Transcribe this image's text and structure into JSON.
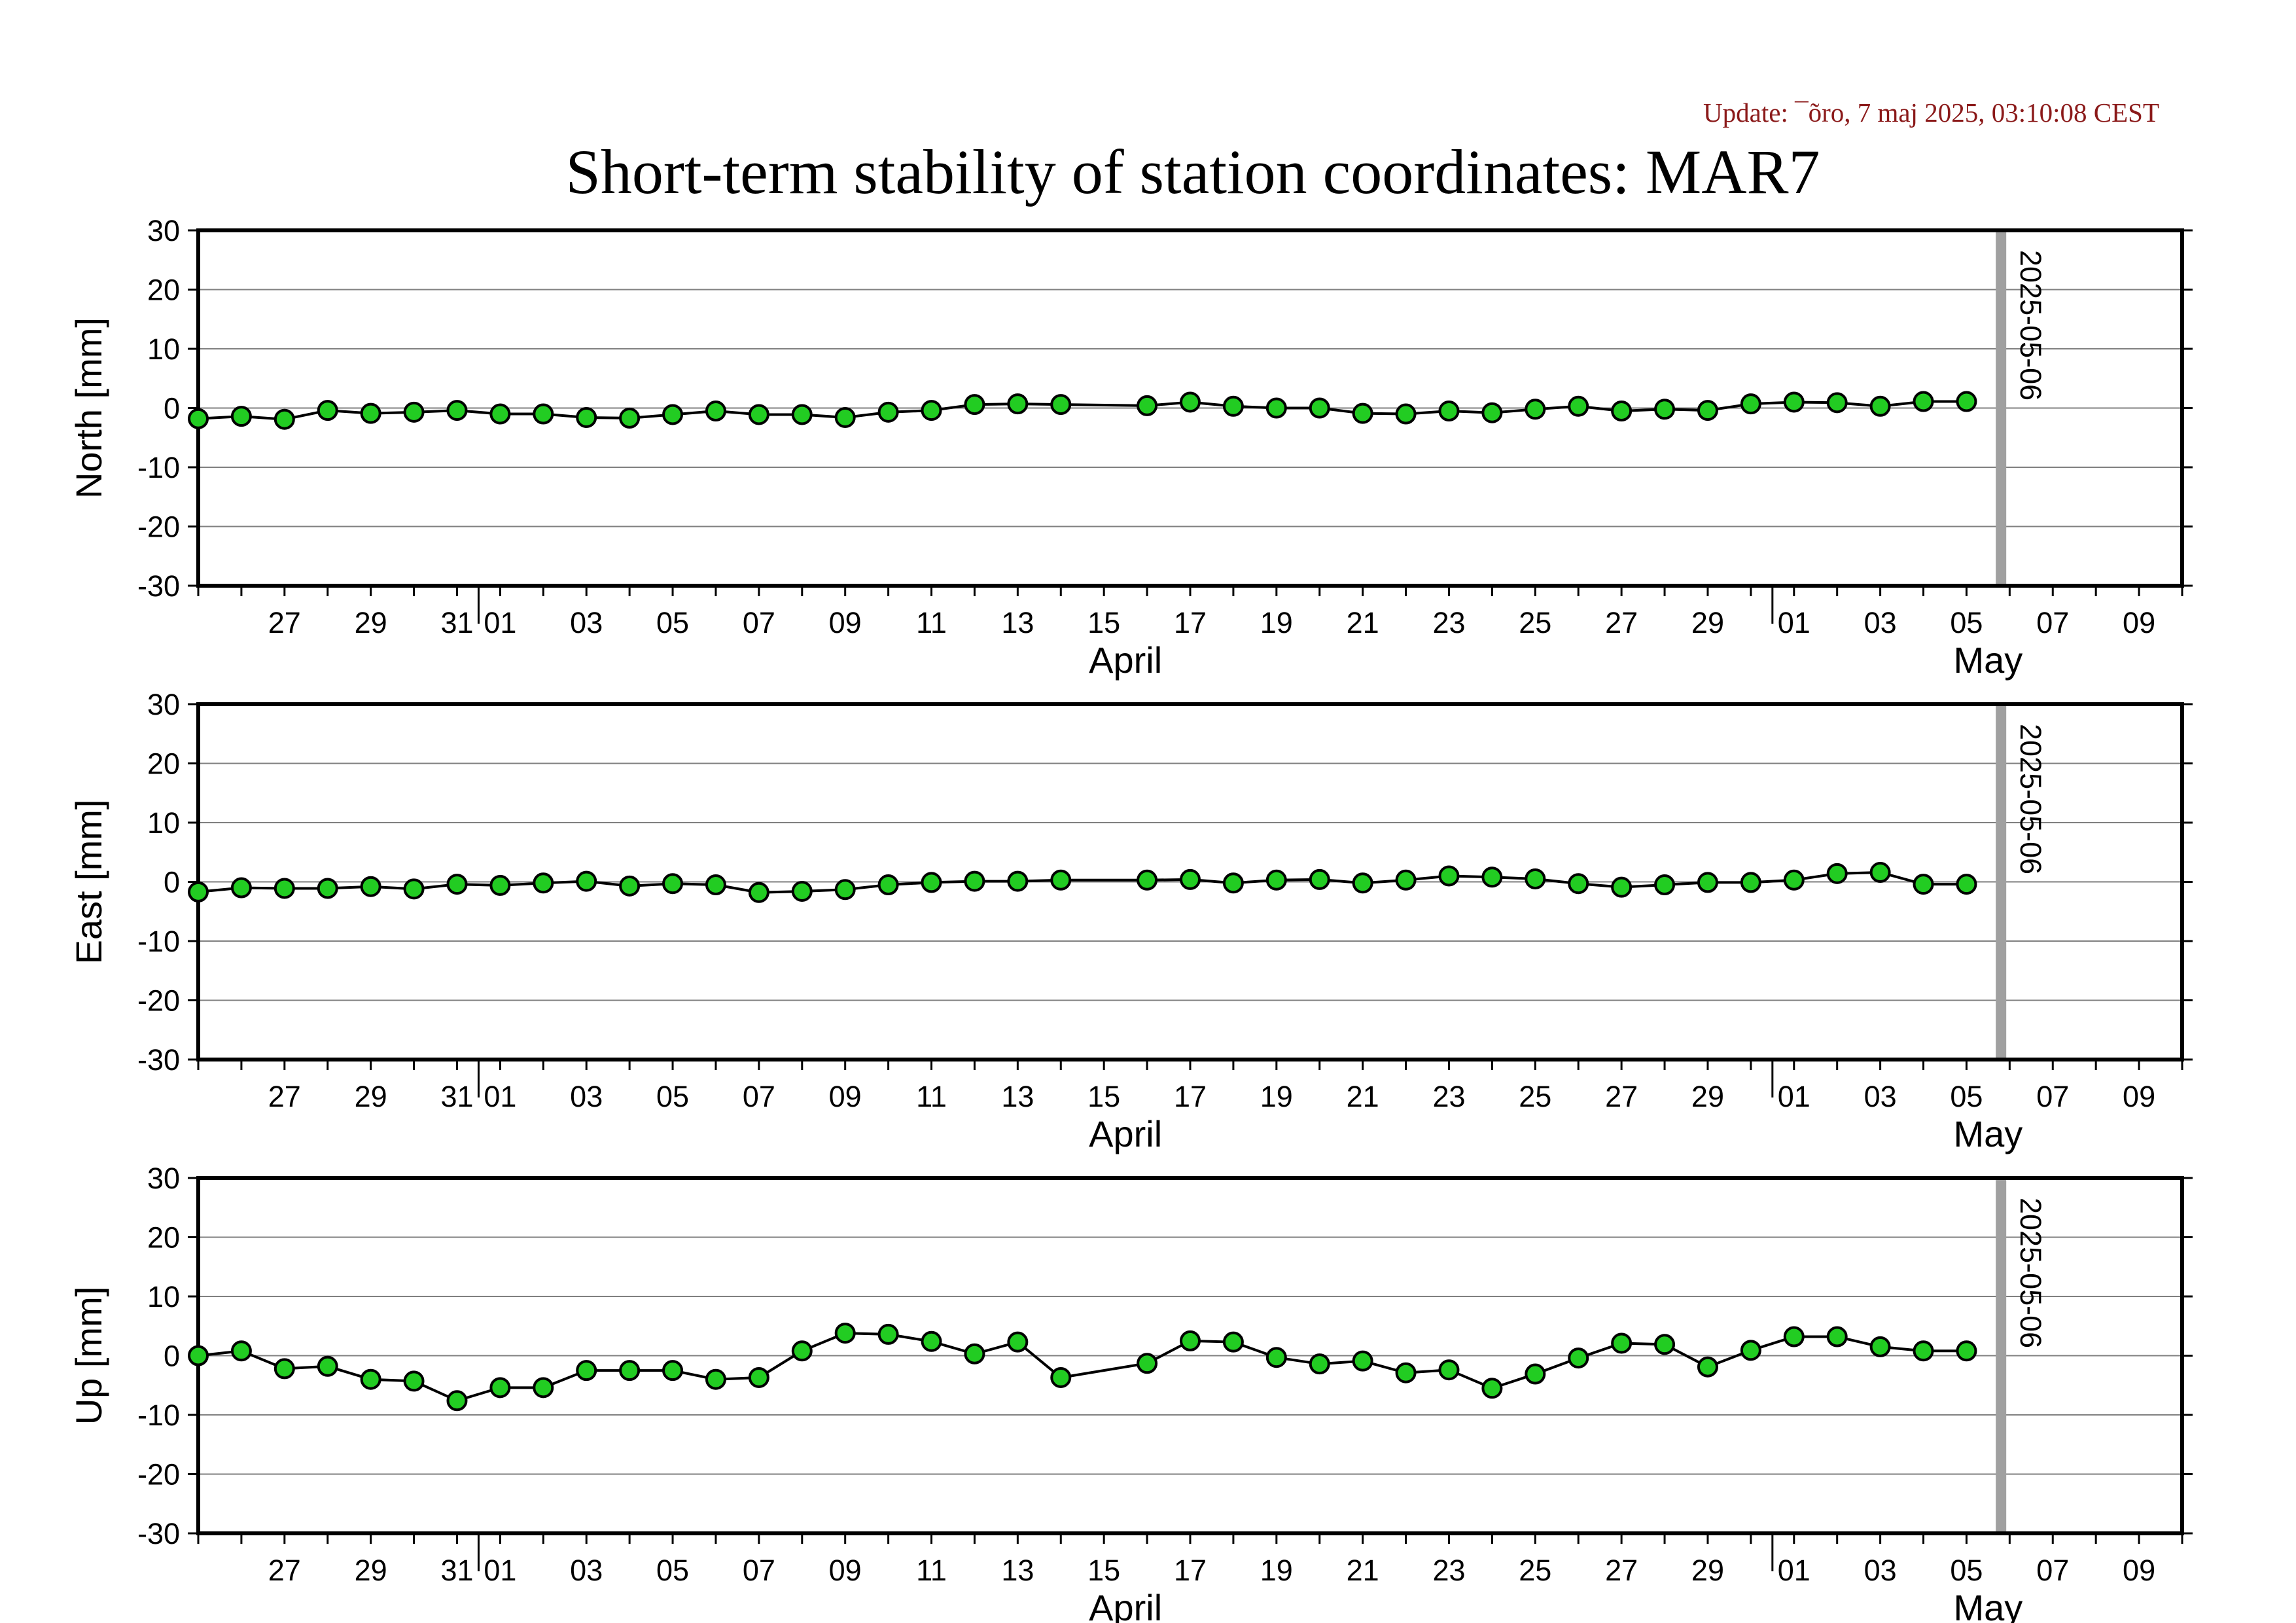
{
  "update_text": "Update: ¯õro, 7 maj 2025, 03:10:08 CEST",
  "title": "Short-term stability of station coordinates: MAR7",
  "colors": {
    "point_fill": "#22cc22",
    "point_stroke": "#000000",
    "line": "#000000",
    "grid": "#808080",
    "marker": "#a0a0a0",
    "update": "#8b1a1a"
  },
  "chart_data": {
    "type": "line",
    "x_start_date": "2025-03-25",
    "x_end_date": "2025-05-10",
    "x_range_days": [
      0,
      46
    ],
    "ylim": [
      -30,
      30
    ],
    "yticks": [
      30,
      20,
      10,
      0,
      -10,
      -20,
      -30
    ],
    "grid": true,
    "x_tick_labels": [
      {
        "day": 2,
        "label": "27"
      },
      {
        "day": 4,
        "label": "29"
      },
      {
        "day": 6,
        "label": "31"
      },
      {
        "day": 7,
        "label": "01"
      },
      {
        "day": 9,
        "label": "03"
      },
      {
        "day": 11,
        "label": "05"
      },
      {
        "day": 13,
        "label": "07"
      },
      {
        "day": 15,
        "label": "09"
      },
      {
        "day": 17,
        "label": "11"
      },
      {
        "day": 19,
        "label": "13"
      },
      {
        "day": 21,
        "label": "15"
      },
      {
        "day": 23,
        "label": "17"
      },
      {
        "day": 25,
        "label": "19"
      },
      {
        "day": 27,
        "label": "21"
      },
      {
        "day": 29,
        "label": "23"
      },
      {
        "day": 31,
        "label": "25"
      },
      {
        "day": 33,
        "label": "27"
      },
      {
        "day": 35,
        "label": "29"
      },
      {
        "day": 37,
        "label": "01"
      },
      {
        "day": 39,
        "label": "03"
      },
      {
        "day": 41,
        "label": "05"
      },
      {
        "day": 43,
        "label": "07"
      },
      {
        "day": 45,
        "label": "09"
      }
    ],
    "month_labels": [
      {
        "day": 21.5,
        "label": "April"
      },
      {
        "day": 41.5,
        "label": "May"
      }
    ],
    "month_boundaries": [
      6.5,
      36.5
    ],
    "marker": {
      "day": 41.8,
      "label": "2025-05-06"
    },
    "series_x": [
      0,
      1,
      2,
      3,
      4,
      5,
      6,
      7,
      8,
      9,
      10,
      11,
      12,
      13,
      14,
      15,
      16,
      17,
      18,
      19,
      20,
      22,
      23,
      24,
      25,
      26,
      27,
      28,
      29,
      30,
      31,
      32,
      33,
      34,
      35,
      36,
      37,
      38,
      39,
      40,
      41
    ],
    "panels": [
      {
        "ylabel": "North [mm]",
        "values": [
          -1.8,
          -1.4,
          -1.9,
          -0.4,
          -0.9,
          -0.7,
          -0.4,
          -1.0,
          -1.0,
          -1.6,
          -1.7,
          -1.1,
          -0.5,
          -1.1,
          -1.1,
          -1.6,
          -0.7,
          -0.4,
          0.6,
          0.7,
          0.6,
          0.4,
          1.0,
          0.3,
          0.0,
          0.0,
          -0.9,
          -1.0,
          -0.5,
          -0.8,
          -0.2,
          0.3,
          -0.5,
          -0.2,
          -0.4,
          0.7,
          1.0,
          0.9,
          0.3,
          1.1,
          1.1
        ]
      },
      {
        "ylabel": "East [mm]",
        "values": [
          -1.7,
          -1.0,
          -1.1,
          -1.1,
          -0.8,
          -1.2,
          -0.4,
          -0.6,
          -0.2,
          0.1,
          -0.7,
          -0.3,
          -0.5,
          -1.8,
          -1.6,
          -1.3,
          -0.5,
          -0.1,
          0.1,
          0.1,
          0.3,
          0.3,
          0.4,
          -0.2,
          0.3,
          0.4,
          -0.2,
          0.3,
          1.0,
          0.8,
          0.5,
          -0.3,
          -0.9,
          -0.5,
          -0.1,
          -0.1,
          0.3,
          1.4,
          1.6,
          -0.4,
          -0.4
        ]
      },
      {
        "ylabel": "Up [mm]",
        "values": [
          0.0,
          0.8,
          -2.2,
          -1.8,
          -4.0,
          -4.3,
          -7.6,
          -5.4,
          -5.4,
          -2.5,
          -2.5,
          -2.5,
          -4.0,
          -3.7,
          0.8,
          3.8,
          3.6,
          2.4,
          0.3,
          2.3,
          -3.7,
          -1.3,
          2.5,
          2.3,
          -0.3,
          -1.4,
          -0.9,
          -2.9,
          -2.4,
          -5.5,
          -3.1,
          -0.4,
          2.1,
          1.9,
          -1.9,
          0.9,
          3.2,
          3.2,
          1.5,
          0.8,
          0.8
        ]
      }
    ]
  }
}
